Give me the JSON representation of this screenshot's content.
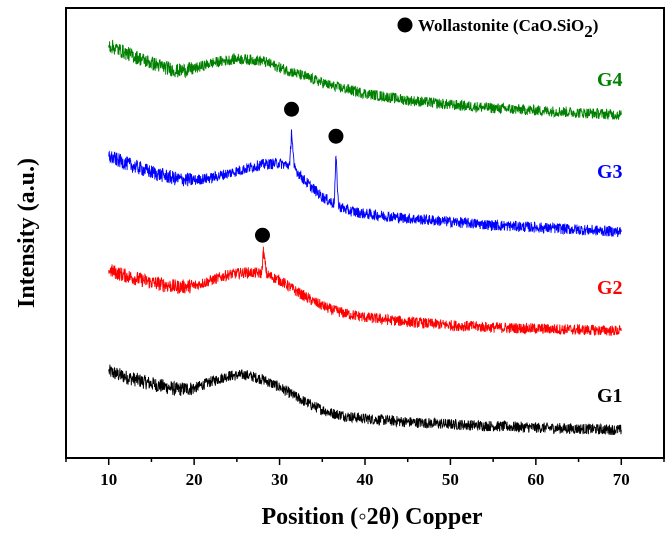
{
  "chart_data": {
    "type": "line",
    "xlabel": "Position (◦2θ) Copper",
    "ylabel": "Intensity (a.u.)",
    "xlim": [
      5,
      75
    ],
    "xticks": [
      10,
      20,
      30,
      40,
      50,
      60,
      70
    ],
    "yticks": [],
    "grid": false,
    "legend": {
      "placement": "top-right",
      "marker": "filled-circle",
      "label_main": "Wollastonite (CaO.SiO",
      "label_sub": "2",
      "label_end": ")"
    },
    "series": [
      {
        "name": "G1",
        "color": "#000000",
        "x": [
          10,
          12,
          15,
          18,
          20,
          22,
          24,
          26,
          28,
          30,
          32,
          34,
          36,
          38,
          40,
          45,
          50,
          55,
          60,
          65,
          70
        ],
        "y": [
          3.05,
          2.8,
          2.5,
          2.25,
          2.3,
          2.6,
          2.85,
          2.9,
          2.7,
          2.35,
          1.9,
          1.5,
          1.2,
          1.05,
          0.95,
          0.8,
          0.7,
          0.62,
          0.55,
          0.5,
          0.45
        ]
      },
      {
        "name": "G2",
        "color": "#ff0000",
        "x": [
          10,
          12,
          15,
          18,
          20,
          22,
          24,
          26,
          27.9,
          28.1,
          28.5,
          30,
          32,
          34,
          36,
          38,
          40,
          45,
          50,
          55,
          60,
          65,
          70
        ],
        "y": [
          7.55,
          7.3,
          7.0,
          6.8,
          6.85,
          7.1,
          7.35,
          7.45,
          7.4,
          8.4,
          7.35,
          7.1,
          6.6,
          6.15,
          5.8,
          5.6,
          5.45,
          5.25,
          5.1,
          5.0,
          4.95,
          4.9,
          4.85
        ]
      },
      {
        "name": "G3",
        "color": "#0000ff",
        "x": [
          10,
          12,
          15,
          18,
          20,
          22,
          25,
          28,
          30,
          31.2,
          31.4,
          31.7,
          33,
          35,
          36.4,
          36.6,
          36.9,
          38,
          40,
          45,
          50,
          55,
          60,
          65,
          70
        ],
        "y": [
          12.6,
          12.3,
          11.9,
          11.6,
          11.55,
          11.65,
          11.95,
          12.25,
          12.3,
          12.2,
          13.8,
          12.1,
          11.5,
          10.8,
          10.5,
          12.6,
          10.4,
          10.2,
          10.05,
          9.85,
          9.7,
          9.55,
          9.45,
          9.35,
          9.25
        ]
      },
      {
        "name": "G4",
        "color": "#008000",
        "x": [
          10,
          12,
          15,
          18,
          20,
          22,
          25,
          28,
          30,
          33,
          36,
          40,
          45,
          50,
          55,
          60,
          65,
          70
        ],
        "y": [
          17.55,
          17.2,
          16.75,
          16.4,
          16.5,
          16.75,
          16.95,
          16.85,
          16.55,
          16.15,
          15.75,
          15.4,
          15.1,
          14.9,
          14.75,
          14.65,
          14.55,
          14.45
        ]
      }
    ],
    "annotations": [
      {
        "marker": "filled-circle",
        "x": 28.0,
        "y": 9.1,
        "series": "G2"
      },
      {
        "marker": "filled-circle",
        "x": 31.4,
        "y": 14.7,
        "series": "G3"
      },
      {
        "marker": "filled-circle",
        "x": 36.6,
        "y": 13.5,
        "series": "G3"
      }
    ],
    "ylim": [
      -0.8,
      19.2
    ]
  }
}
